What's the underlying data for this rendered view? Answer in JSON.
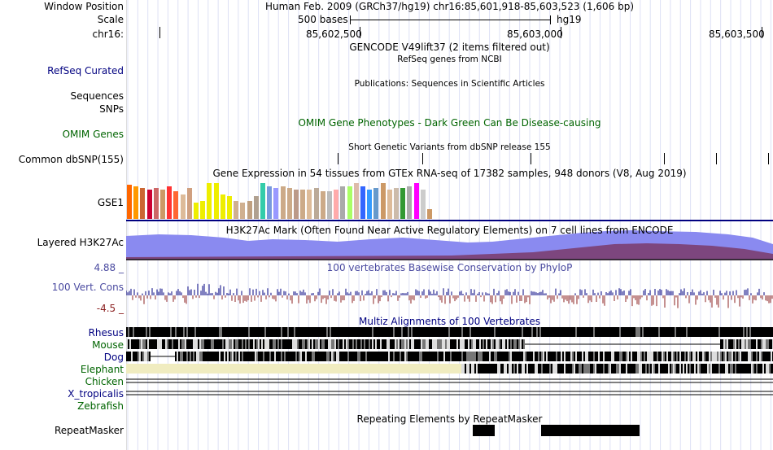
{
  "header": {
    "window_position_label": "Window Position",
    "scale_label": "Scale",
    "chrom_label": "chr16:",
    "position_text": "Human Feb. 2009 (GRCh37/hg19)   chr16:85,601,918-85,603,523 (1,606 bp)",
    "scale_text": "500 bases",
    "assembly": "hg19",
    "ticks": [
      "85,602,500",
      "85,603,000",
      "85,603,500"
    ]
  },
  "tracks": {
    "gencode_title": "GENCODE V49lift37 (2 items filtered out)",
    "refseq_label": "RefSeq Curated",
    "refseq_title": "RefSeq genes from NCBI",
    "publications_title": "Publications: Sequences in Scientific Articles",
    "sequences_label": "Sequences",
    "snps_label": "SNPs",
    "omim_label": "OMIM Genes",
    "omim_title": "OMIM Gene Phenotypes - Dark Green Can Be Disease-causing",
    "dbsnp_title": "Short Genetic Variants from dbSNP release 155",
    "dbsnp_label": "Common dbSNP(155)",
    "gtex_title": "Gene Expression in 54 tissues from GTEx RNA-seq of 17382 samples, 948 donors (V8, Aug 2019)",
    "gtex_label": "GSE1",
    "h3k27ac_label": "Layered H3K27Ac",
    "h3k27ac_title": "H3K27Ac Mark (Often Found Near Active Regulatory Elements) on 7 cell lines from ENCODE",
    "phylop_max": "4.88 _",
    "phylop_min": "-4.5 _",
    "phylop_label": "100 Vert. Cons",
    "phylop_title": "100 vertebrates Basewise Conservation by PhyloP",
    "multiz_title": "Multiz Alignments of 100 Vertebrates",
    "species": [
      "Rhesus",
      "Mouse",
      "Dog",
      "Elephant",
      "Chicken",
      "X_tropicalis",
      "Zebrafish"
    ],
    "repeat_title": "Repeating Elements by RepeatMasker",
    "repeat_label": "RepeatMasker"
  },
  "colors": {
    "navy": "#000080",
    "green": "#006400",
    "h3k27ac_blue": "#8080f0",
    "h3k27ac_maroon": "#7a3a6a",
    "phylop_blue": "#000080",
    "phylop_red": "#8b2020"
  },
  "gtex_bar_heights": [
    42,
    40,
    38,
    36,
    38,
    36,
    40,
    34,
    30,
    38,
    20,
    22,
    44,
    44,
    30,
    28,
    22,
    20,
    22,
    28,
    44,
    40,
    38,
    40,
    38,
    36,
    36,
    36,
    38,
    34,
    34,
    36,
    40,
    40,
    44,
    40,
    36,
    38,
    44,
    36,
    38,
    38,
    40,
    44,
    36,
    12
  ],
  "gtex_bar_colors": [
    "#ff6600",
    "#ff9900",
    "#cc6633",
    "#cc0033",
    "#cc6666",
    "#cc9966",
    "#ff3333",
    "#ff6633",
    "#ddbb99",
    "#d0a080",
    "#eeee00",
    "#eeee00",
    "#eeee00",
    "#eeee00",
    "#eeee00",
    "#eeee00",
    "#d0b090",
    "#d0b090",
    "#c0a080",
    "#b0a090",
    "#33ccaa",
    "#7799dd",
    "#9999ff",
    "#ccaa88",
    "#ccaa88",
    "#bb9988",
    "#ccaa88",
    "#ddbb99",
    "#bbaa99",
    "#ccaa88",
    "#bbbbbb",
    "#ffaaaa",
    "#aaaaaa",
    "#aaff66",
    "#ddbbaa",
    "#3366ff",
    "#3399ff",
    "#6699cc",
    "#cc9966",
    "#ddbb99",
    "#ccbbaa",
    "#339933",
    "#aaaaaa",
    "#ff00ff",
    "#cccccc",
    "#cc9966"
  ]
}
